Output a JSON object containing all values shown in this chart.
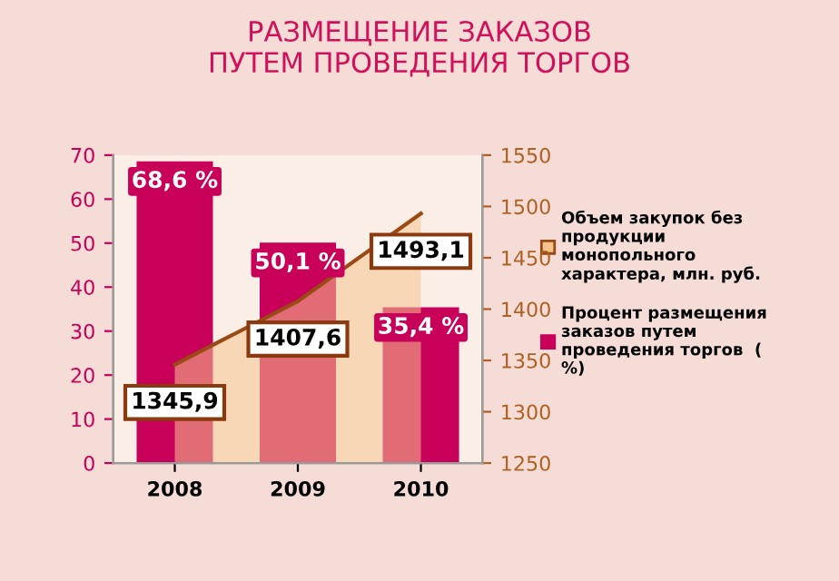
{
  "chart_data": {
    "type": "bar",
    "title": "РАЗМЕЩЕНИЕ ЗАКАЗОВ\nПУТЕМ ПРОВЕДЕНИЯ ТОРГОВ",
    "categories": [
      "2008",
      "2009",
      "2010"
    ],
    "series": [
      {
        "name": "Объем закупок без продукции монопольного характера, млн. руб.",
        "type": "area",
        "axis": "y2",
        "color": "#f5c48e",
        "values": [
          1345.9,
          1407.6,
          1493.1
        ],
        "value_labels": [
          "1345,9",
          "1407,6",
          "1493,1"
        ]
      },
      {
        "name": "Процент размещения заказов путем проведения торгов  ( %)",
        "color": "#c8005a",
        "values": [
          68.6,
          50.1,
          35.4
        ],
        "value_labels": [
          "68,6 %",
          "50,1 %",
          "35,4 %"
        ]
      }
    ],
    "ylim": [
      0,
      70
    ],
    "yticks": [
      0,
      10,
      20,
      30,
      40,
      50,
      60,
      70
    ],
    "y2lim": [
      1250,
      1550
    ],
    "y2ticks": [
      1250,
      1300,
      1350,
      1400,
      1450,
      1500,
      1550
    ],
    "grid": false,
    "legend": "right"
  }
}
